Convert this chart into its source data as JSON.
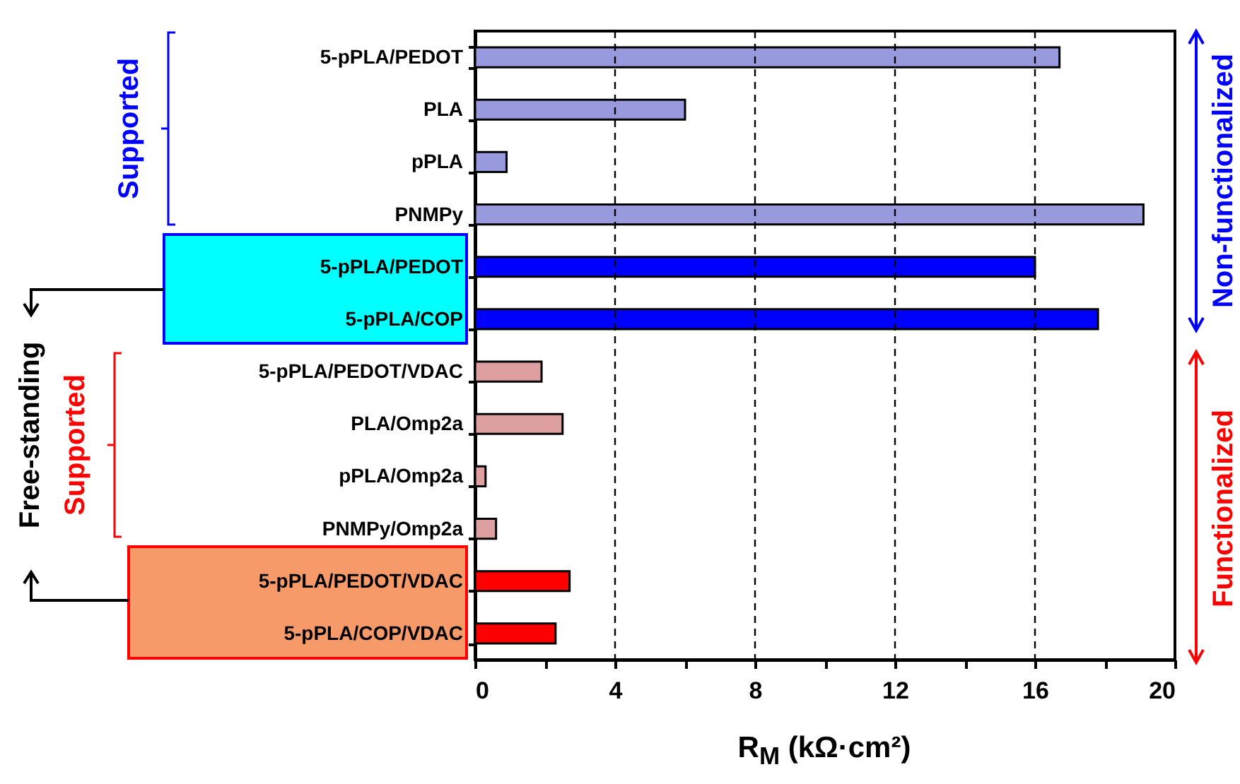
{
  "chart_data": {
    "type": "bar",
    "orientation": "horizontal",
    "xlabel": "R$_{M}$ (kΩ·cm²)",
    "categories": [
      "5-pPLA/PEDOT",
      "PLA",
      "pPLA",
      "PNMPy",
      "5-pPLA/PEDOT",
      "5-pPLA/COP",
      "5-pPLA/PEDOT/VDAC",
      "PLA/Omp2a",
      "pPLA/Omp2a",
      "PNMPy/Omp2a",
      "5-pPLA/PEDOT/VDAC",
      "5-pPLA/COP/VDAC"
    ],
    "values": [
      16.7,
      6.0,
      0.9,
      19.1,
      16.0,
      17.8,
      1.9,
      2.5,
      0.3,
      0.6,
      2.7,
      2.3
    ],
    "colors": [
      "#9999dd",
      "#9999dd",
      "#9999dd",
      "#9999dd",
      "#0000ff",
      "#0000ff",
      "#dd9f9f",
      "#dd9f9f",
      "#dd9f9f",
      "#dd9f9f",
      "#ff0000",
      "#ff0000"
    ],
    "xlim": [
      0,
      20
    ],
    "xticks": [
      0,
      {
        "value": 2,
        "label": null
      },
      4,
      {
        "value": 6,
        "label": null
      },
      8,
      {
        "value": 10,
        "label": null
      },
      12,
      {
        "value": 14,
        "label": null
      },
      16,
      {
        "value": 18,
        "label": null
      },
      20
    ],
    "grid": "x",
    "annotations": [
      "Supported",
      "Free-standing",
      "Supported",
      "Non-functionalized",
      "Functionalized"
    ]
  }
}
